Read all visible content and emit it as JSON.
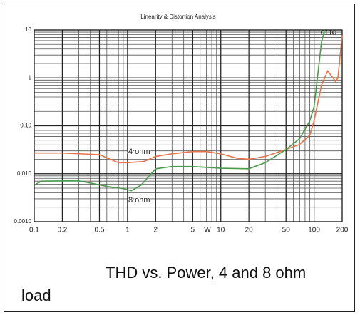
{
  "chart_data": {
    "type": "line",
    "title": "Linearity & Distortion Analysis",
    "logo": "CLIO",
    "xlabel": "W",
    "xscale": "log",
    "yscale": "log",
    "grid": true,
    "minor_grid": true,
    "xlim": [
      0.1,
      200
    ],
    "ylim": [
      0.001,
      10
    ],
    "xticks": [
      0.1,
      0.2,
      0.5,
      1,
      2,
      5,
      10,
      20,
      50,
      100,
      200
    ],
    "yticks": [
      {
        "value": 0.001,
        "label": "0.0010"
      },
      {
        "value": 0.01,
        "label": "0.010"
      },
      {
        "value": 0.1,
        "label": "0.10"
      },
      1,
      10
    ],
    "series": [
      {
        "name": "4 ohm",
        "color": "#e8734a",
        "x": [
          0.1,
          0.2,
          0.5,
          0.8,
          1,
          1.5,
          2,
          3,
          5,
          7,
          10,
          15,
          20,
          30,
          50,
          70,
          90,
          100,
          120,
          140,
          170,
          180,
          200
        ],
        "values": [
          0.027,
          0.027,
          0.025,
          0.017,
          0.017,
          0.018,
          0.023,
          0.026,
          0.029,
          0.029,
          0.026,
          0.021,
          0.02,
          0.023,
          0.032,
          0.041,
          0.064,
          0.127,
          0.71,
          1.4,
          0.84,
          1.0,
          7.9
        ]
      },
      {
        "name": "8 ohm",
        "color": "#4c9a4c",
        "x": [
          0.1,
          0.12,
          0.2,
          0.3,
          0.4,
          0.6,
          0.9,
          1.1,
          1.4,
          2,
          3,
          5,
          10,
          20,
          30,
          50,
          70,
          90,
          100,
          120,
          130
        ],
        "values": [
          0.0058,
          0.007,
          0.0071,
          0.0071,
          0.0064,
          0.0054,
          0.0049,
          0.0044,
          0.0058,
          0.0127,
          0.0141,
          0.0141,
          0.013,
          0.0127,
          0.017,
          0.032,
          0.054,
          0.127,
          0.25,
          5.6,
          10
        ]
      }
    ],
    "caption": [
      "THD vs. Power, 4 and 8 ohm",
      "load"
    ]
  }
}
